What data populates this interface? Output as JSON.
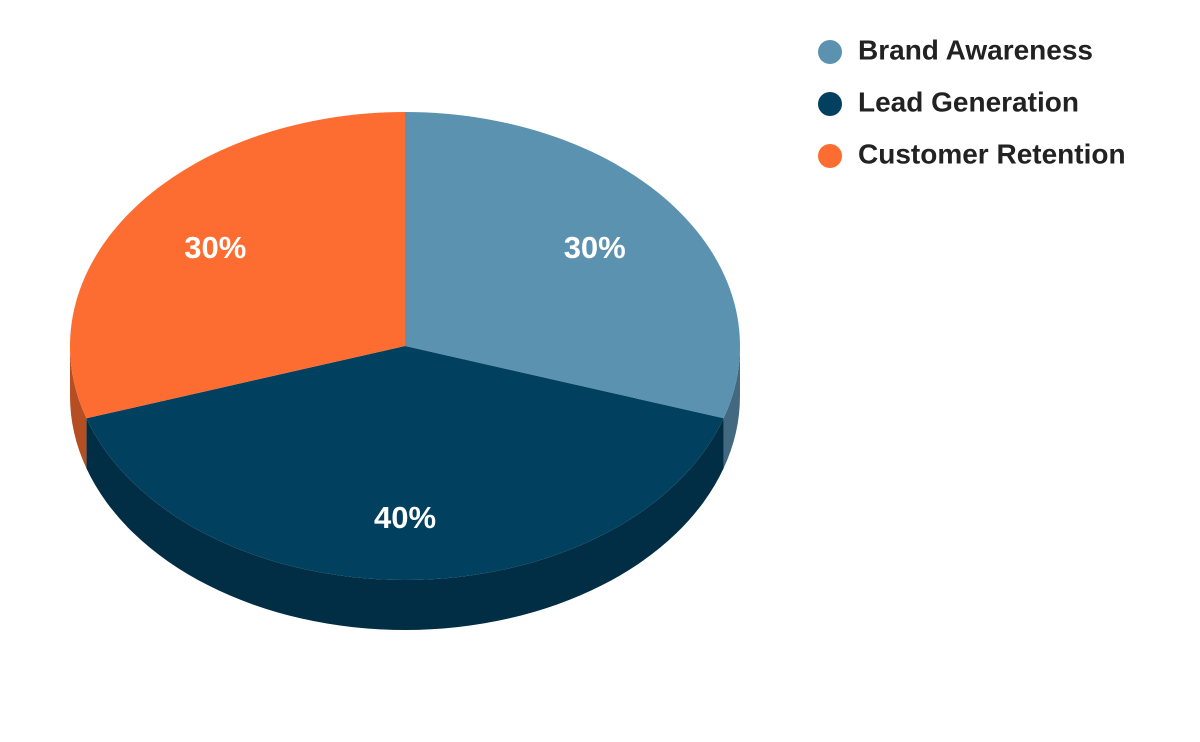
{
  "chart_data": {
    "type": "pie",
    "categories": [
      "Brand Awareness",
      "Lead Generation",
      "Customer Retention"
    ],
    "values": [
      30,
      40,
      30
    ],
    "value_labels": [
      "30%",
      "40%",
      "30%"
    ],
    "colors": [
      "#5b92b0",
      "#02405f",
      "#fd6d31"
    ],
    "legend": "top-right"
  }
}
